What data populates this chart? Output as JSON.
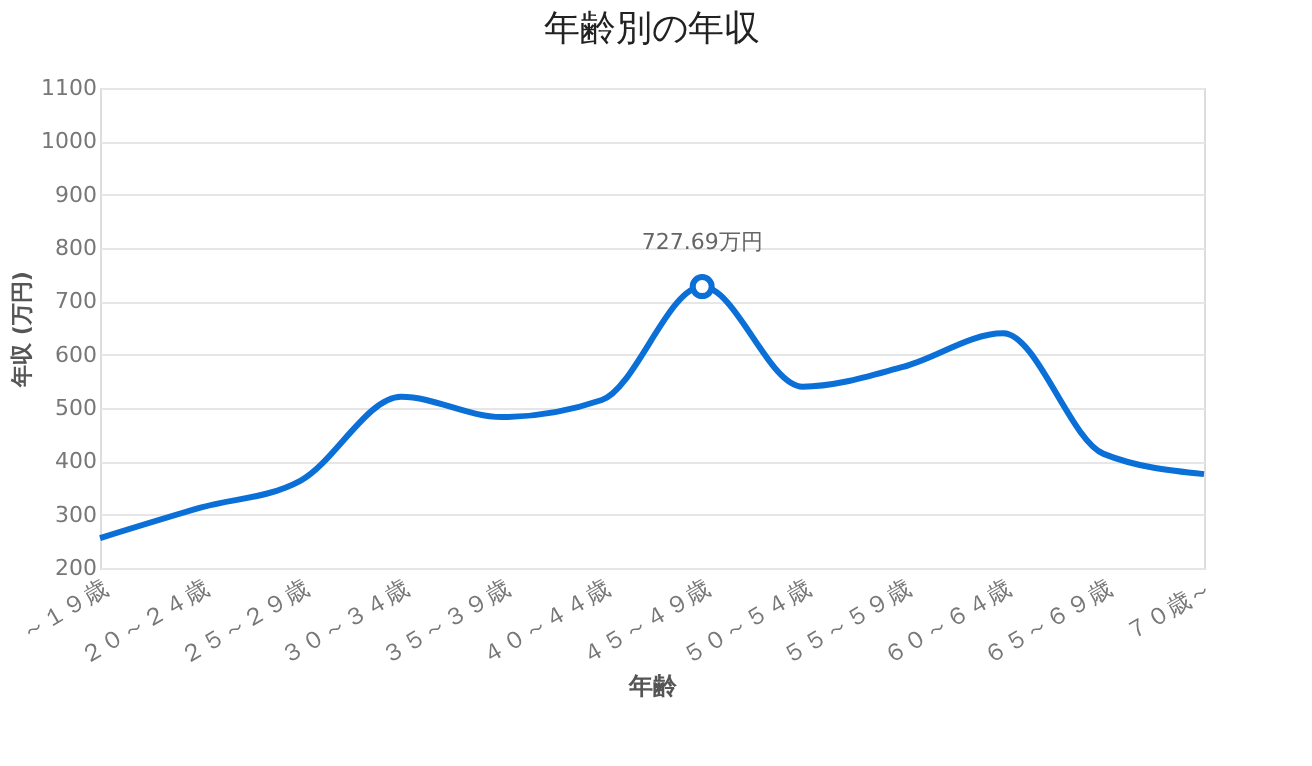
{
  "chart_data": {
    "type": "line",
    "title": "年齢別の年収",
    "xlabel": "年齢",
    "ylabel": "年収 (万円)",
    "categories": [
      "～１９歳",
      "２０～２４歳",
      "２５～２９歳",
      "３０～３４歳",
      "３５～３９歳",
      "４０～４４歳",
      "４５～４９歳",
      "５０～５４歳",
      "５５～５９歳",
      "６０～６４歳",
      "６５～６９歳",
      "７０歳～"
    ],
    "series": [
      {
        "color": "#0a6fd6",
        "values": [
          256,
          313,
          364,
          521,
          483,
          515,
          727.69,
          540,
          577,
          640,
          414,
          376
        ],
        "value_labels": [
          null,
          null,
          null,
          null,
          null,
          null,
          "727.69万円",
          null,
          null,
          null,
          null,
          null
        ]
      }
    ],
    "ylim": [
      200,
      1100
    ],
    "yticks": [
      200,
      300,
      400,
      500,
      600,
      700,
      800,
      900,
      1000,
      1100
    ],
    "grid": "y",
    "marker": "none",
    "line_style": "solid"
  }
}
